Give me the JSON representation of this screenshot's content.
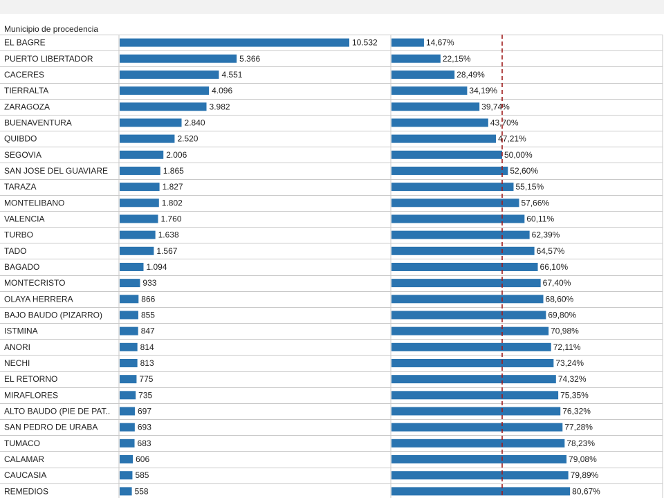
{
  "header": {
    "column_label": "Municipio de procedencia"
  },
  "colors": {
    "bar": "#2a74b0",
    "grid": "#c9c9c9",
    "reference_line": "#a01c1c",
    "text": "#222222",
    "top_band": "#f2f2f2"
  },
  "chart_data": [
    {
      "type": "bar",
      "orientation": "horizontal",
      "categories": [
        "EL BAGRE",
        "PUERTO LIBERTADOR",
        "CACERES",
        "TIERRALTA",
        "ZARAGOZA",
        "BUENAVENTURA",
        "QUIBDO",
        "SEGOVIA",
        "SAN JOSE DEL GUAVIARE",
        "TARAZA",
        "MONTELIBANO",
        "VALENCIA",
        "TURBO",
        "TADO",
        "BAGADO",
        "MONTECRISTO",
        "OLAYA HERRERA",
        "BAJO BAUDO (PIZARRO)",
        "ISTMINA",
        "ANORI",
        "NECHI",
        "EL RETORNO",
        "MIRAFLORES",
        "ALTO BAUDO (PIE DE PAT..",
        "SAN PEDRO DE URABA",
        "TUMACO",
        "CALAMAR",
        "CAUCASIA",
        "REMEDIOS"
      ],
      "values": [
        10532,
        5366,
        4551,
        4096,
        3982,
        2840,
        2520,
        2006,
        1865,
        1827,
        1802,
        1760,
        1638,
        1567,
        1094,
        933,
        866,
        855,
        847,
        814,
        813,
        775,
        735,
        697,
        693,
        683,
        606,
        585,
        558
      ],
      "value_labels": [
        "10.532",
        "5.366",
        "4.551",
        "4.096",
        "3.982",
        "2.840",
        "2.520",
        "2.006",
        "1.865",
        "1.827",
        "1.802",
        "1.760",
        "1.638",
        "1.567",
        "1.094",
        "933",
        "866",
        "855",
        "847",
        "814",
        "813",
        "775",
        "735",
        "697",
        "693",
        "683",
        "606",
        "585",
        "558"
      ],
      "xlim": [
        0,
        11000
      ],
      "grid": "horizontal row lines"
    },
    {
      "type": "bar",
      "orientation": "horizontal",
      "values": [
        14.67,
        22.15,
        28.49,
        34.19,
        39.74,
        43.7,
        47.21,
        50.0,
        52.6,
        55.15,
        57.66,
        60.11,
        62.39,
        64.57,
        66.1,
        67.4,
        68.6,
        69.8,
        70.98,
        72.11,
        73.24,
        74.32,
        75.35,
        76.32,
        77.28,
        78.23,
        79.08,
        79.89,
        80.67
      ],
      "value_labels": [
        "14,67%",
        "22,15%",
        "28,49%",
        "34,19%",
        "39,74%",
        "43,70%",
        "47,21%",
        "50,00%",
        "52,60%",
        "55,15%",
        "57,66%",
        "60,11%",
        "62,39%",
        "64,57%",
        "66,10%",
        "67,40%",
        "68,60%",
        "69,80%",
        "70,98%",
        "72,11%",
        "73,24%",
        "74,32%",
        "75,35%",
        "76,32%",
        "77,28%",
        "78,23%",
        "79,08%",
        "79,89%",
        "80,67%"
      ],
      "xlim": [
        0,
        100
      ],
      "reference_line": 50,
      "reference_style": "dashed"
    }
  ]
}
